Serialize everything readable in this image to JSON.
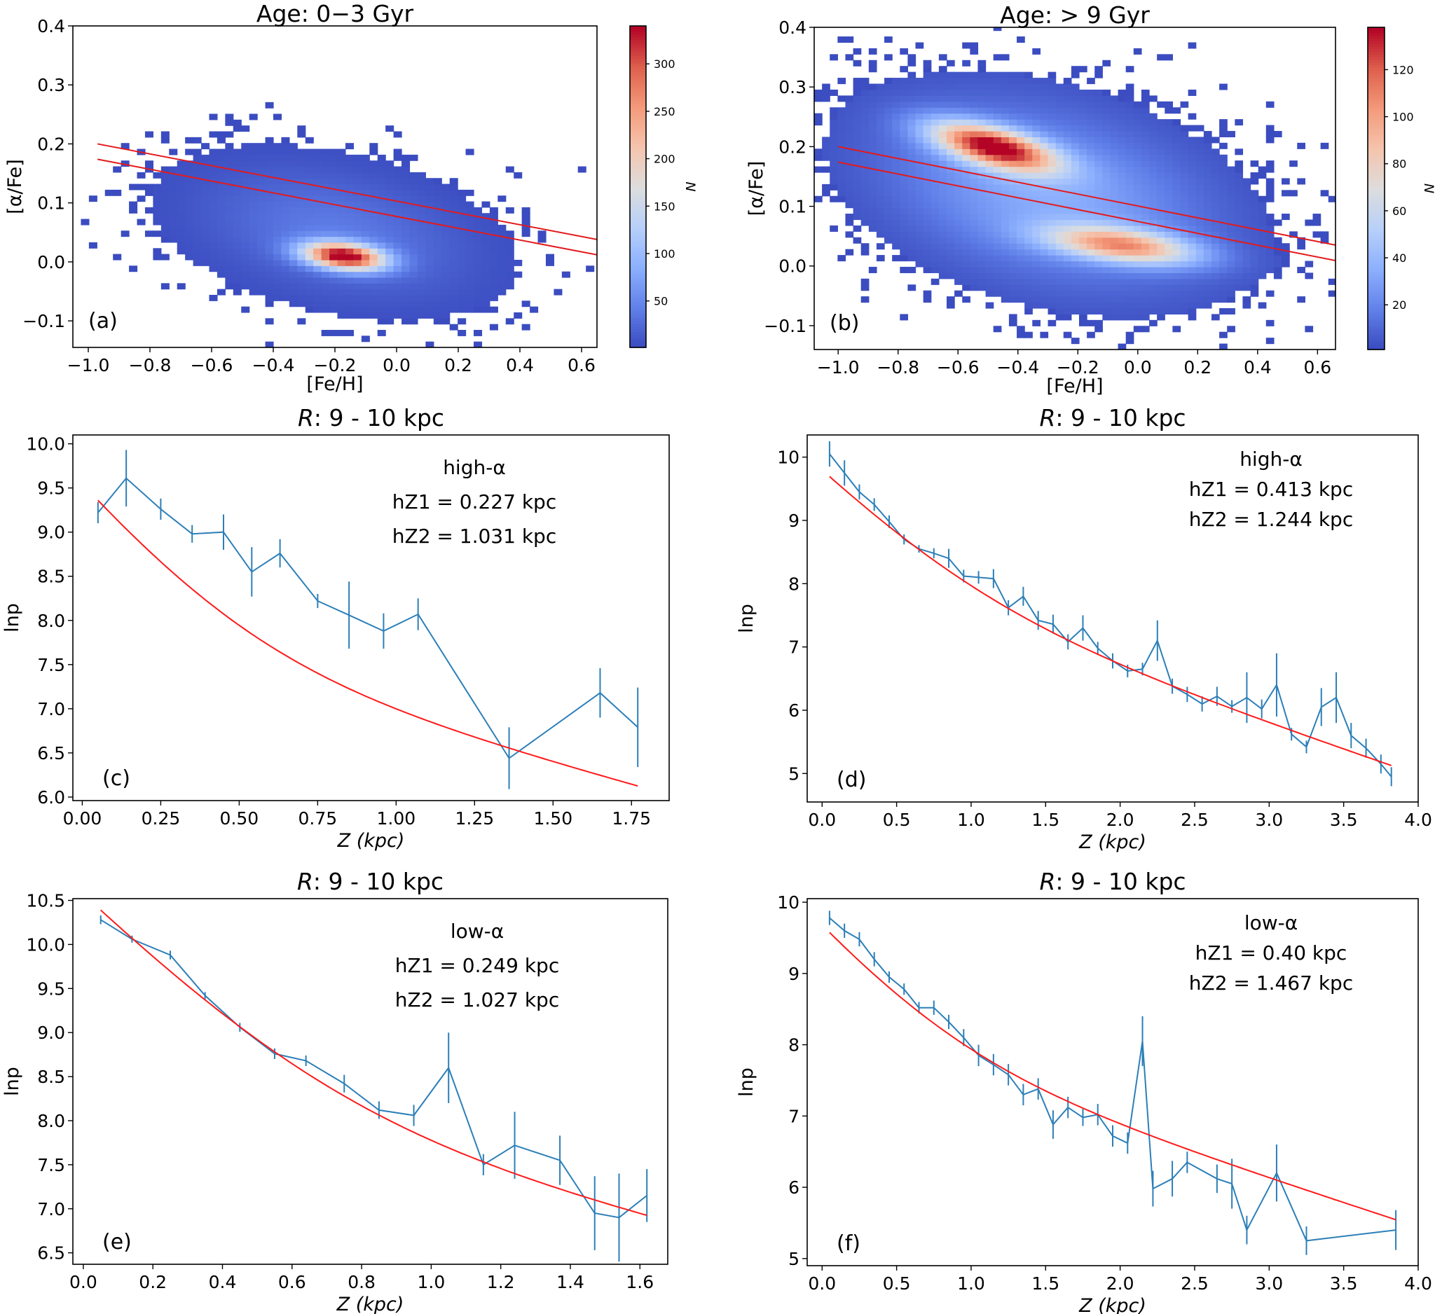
{
  "chart_data": [
    {
      "id": "a",
      "type": "heatmap",
      "title": "Age: 0−3 Gyr",
      "panel_label": "(a)",
      "xlabel": "[Fe/H]",
      "ylabel": "[α/Fe]",
      "xlim": [
        -1.05,
        0.65
      ],
      "ylim": [
        -0.145,
        0.4
      ],
      "xticks": [
        -1.0,
        -0.8,
        -0.6,
        -0.4,
        -0.2,
        0.0,
        0.2,
        0.4,
        0.6
      ],
      "xtick_labels": [
        "−1.0",
        "−0.8",
        "−0.6",
        "−0.4",
        "−0.2",
        "0.0",
        "0.2",
        "0.4",
        "0.6"
      ],
      "yticks": [
        -0.1,
        0.0,
        0.1,
        0.2,
        0.3,
        0.4
      ],
      "ytick_labels": [
        "−0.1",
        "0.0",
        "0.1",
        "0.2",
        "0.3",
        "0.4"
      ],
      "colorbar": {
        "label": "N",
        "min": 1,
        "max": 340,
        "ticks": [
          50,
          100,
          150,
          200,
          250,
          300
        ],
        "tick_labels": [
          "50",
          "100",
          "150",
          "200",
          "250",
          "300"
        ]
      },
      "clumps": [
        {
          "x": -0.17,
          "y": 0.01,
          "sx": 0.09,
          "sy": 0.016,
          "rho": -0.3,
          "amp": 340
        }
      ],
      "halo": {
        "x": -0.2,
        "y": 0.05,
        "sx": 0.28,
        "sy": 0.07,
        "amp": 38
      },
      "dividing_lines": [
        {
          "x": [
            -0.97,
            0.65
          ],
          "y": [
            0.2,
            0.038
          ]
        },
        {
          "x": [
            -0.97,
            0.65
          ],
          "y": [
            0.174,
            0.012
          ]
        }
      ]
    },
    {
      "id": "b",
      "type": "heatmap",
      "title": "Age: > 9 Gyr",
      "panel_label": "(b)",
      "xlabel": "[Fe/H]",
      "ylabel": "[α/Fe]",
      "xlim": [
        -1.08,
        0.66
      ],
      "ylim": [
        -0.14,
        0.4
      ],
      "xticks": [
        -1.0,
        -0.8,
        -0.6,
        -0.4,
        -0.2,
        0.0,
        0.2,
        0.4,
        0.6
      ],
      "xtick_labels": [
        "−1.0",
        "−0.8",
        "−0.6",
        "−0.4",
        "−0.2",
        "0.0",
        "0.2",
        "0.4",
        "0.6"
      ],
      "yticks": [
        -0.1,
        0.0,
        0.1,
        0.2,
        0.3,
        0.4
      ],
      "ytick_labels": [
        "−0.1",
        "0.0",
        "0.1",
        "0.2",
        "0.3",
        "0.4"
      ],
      "colorbar": {
        "label": "N",
        "min": 1,
        "max": 138,
        "ticks": [
          20,
          40,
          60,
          80,
          100,
          120
        ],
        "tick_labels": [
          "20",
          "40",
          "60",
          "80",
          "100",
          "120"
        ]
      },
      "clumps": [
        {
          "x": -0.48,
          "y": 0.2,
          "sx": 0.14,
          "sy": 0.028,
          "rho": -0.6,
          "amp": 128
        },
        {
          "x": -0.05,
          "y": 0.035,
          "sx": 0.17,
          "sy": 0.022,
          "rho": -0.45,
          "amp": 90
        }
      ],
      "halo": {
        "x": -0.3,
        "y": 0.12,
        "sx": 0.36,
        "sy": 0.1,
        "amp": 34
      },
      "dividing_lines": [
        {
          "x": [
            -1.0,
            0.66
          ],
          "y": [
            0.2,
            0.035
          ]
        },
        {
          "x": [
            -1.0,
            0.66
          ],
          "y": [
            0.174,
            0.009
          ]
        }
      ]
    },
    {
      "id": "c",
      "type": "line",
      "title": "R: 9 - 10 kpc",
      "title_italic": "R",
      "title_rest": ": 9 - 10 kpc",
      "panel_label": "(c)",
      "xlabel": "Z (kpc)",
      "ylabel": "lnp",
      "xlim": [
        -0.03,
        1.87
      ],
      "ylim": [
        5.96,
        10.1
      ],
      "xticks": [
        0.0,
        0.25,
        0.5,
        0.75,
        1.0,
        1.25,
        1.5,
        1.75
      ],
      "xtick_labels": [
        "0.00",
        "0.25",
        "0.50",
        "0.75",
        "1.00",
        "1.25",
        "1.50",
        "1.75"
      ],
      "yticks": [
        6.0,
        6.5,
        7.0,
        7.5,
        8.0,
        8.5,
        9.0,
        9.5,
        10.0
      ],
      "ytick_labels": [
        "6.0",
        "6.5",
        "7.0",
        "7.5",
        "8.0",
        "8.5",
        "9.0",
        "9.5",
        "10.0"
      ],
      "annotation": {
        "label": "high-α",
        "line1": "hZ1 = 0.227 kpc",
        "line2": "hZ2 = 1.031 kpc"
      },
      "series": [
        {
          "name": "data",
          "x": [
            0.05,
            0.14,
            0.25,
            0.35,
            0.45,
            0.54,
            0.63,
            0.75,
            0.85,
            0.96,
            1.07,
            1.36,
            1.65,
            1.77
          ],
          "y": [
            9.22,
            9.61,
            9.26,
            8.98,
            9.0,
            8.55,
            8.76,
            8.22,
            8.06,
            7.88,
            8.07,
            6.44,
            7.18,
            6.79
          ],
          "yerr": [
            0.12,
            0.32,
            0.12,
            0.1,
            0.2,
            0.28,
            0.16,
            0.08,
            0.38,
            0.2,
            0.18,
            0.35,
            0.28,
            0.45
          ]
        },
        {
          "name": "fit",
          "n0": 14000,
          "h1": 0.227,
          "h2": 1.031,
          "f": 0.18
        }
      ]
    },
    {
      "id": "d",
      "type": "line",
      "title": "R: 9 - 10 kpc",
      "title_italic": "R",
      "title_rest": ": 9 - 10 kpc",
      "panel_label": "(d)",
      "xlabel": "Z (kpc)",
      "ylabel": "lnp",
      "xlim": [
        -0.1,
        4.0
      ],
      "ylim": [
        4.55,
        10.35
      ],
      "xticks": [
        0.0,
        0.5,
        1.0,
        1.5,
        2.0,
        2.5,
        3.0,
        3.5,
        4.0
      ],
      "xtick_labels": [
        "0.0",
        "0.5",
        "1.0",
        "1.5",
        "2.0",
        "2.5",
        "3.0",
        "3.5",
        "4.0"
      ],
      "yticks": [
        5,
        6,
        7,
        8,
        9,
        10
      ],
      "ytick_labels": [
        "5",
        "6",
        "7",
        "8",
        "9",
        "10"
      ],
      "annotation": {
        "label": "high-α",
        "line1": "hZ1 = 0.413 kpc",
        "line2": "hZ2 = 1.244 kpc"
      },
      "series": [
        {
          "name": "data",
          "x": [
            0.05,
            0.15,
            0.25,
            0.35,
            0.45,
            0.55,
            0.65,
            0.75,
            0.85,
            0.95,
            1.05,
            1.15,
            1.25,
            1.35,
            1.45,
            1.55,
            1.65,
            1.75,
            1.85,
            1.95,
            2.05,
            2.15,
            2.25,
            2.35,
            2.45,
            2.55,
            2.65,
            2.75,
            2.85,
            2.95,
            3.05,
            3.15,
            3.25,
            3.35,
            3.45,
            3.55,
            3.65,
            3.75,
            3.82
          ],
          "y": [
            10.05,
            9.75,
            9.45,
            9.25,
            8.98,
            8.7,
            8.55,
            8.48,
            8.4,
            8.12,
            8.1,
            8.08,
            7.62,
            7.8,
            7.42,
            7.36,
            7.08,
            7.3,
            6.98,
            6.78,
            6.62,
            6.65,
            7.1,
            6.38,
            6.25,
            6.1,
            6.22,
            6.06,
            6.2,
            6.02,
            6.4,
            5.62,
            5.42,
            6.05,
            6.2,
            5.6,
            5.4,
            5.15,
            4.95
          ],
          "yerr": [
            0.2,
            0.2,
            0.12,
            0.1,
            0.1,
            0.08,
            0.06,
            0.08,
            0.15,
            0.1,
            0.1,
            0.15,
            0.12,
            0.15,
            0.15,
            0.15,
            0.12,
            0.2,
            0.1,
            0.12,
            0.1,
            0.1,
            0.32,
            0.12,
            0.12,
            0.12,
            0.15,
            0.1,
            0.4,
            0.15,
            0.5,
            0.1,
            0.1,
            0.3,
            0.4,
            0.2,
            0.15,
            0.15,
            0.15
          ]
        },
        {
          "name": "fit",
          "n0": 18000,
          "h1": 0.413,
          "h2": 1.244,
          "f": 0.2
        }
      ]
    },
    {
      "id": "e",
      "type": "line",
      "title": "R: 9 - 10 kpc",
      "title_italic": "R",
      "title_rest": ": 9 - 10 kpc",
      "panel_label": "(e)",
      "xlabel": "Z (kpc)",
      "ylabel": "lnp",
      "xlim": [
        -0.03,
        1.68
      ],
      "ylim": [
        6.37,
        10.52
      ],
      "xticks": [
        0.0,
        0.2,
        0.4,
        0.6,
        0.8,
        1.0,
        1.2,
        1.4,
        1.6
      ],
      "xtick_labels": [
        "0.0",
        "0.2",
        "0.4",
        "0.6",
        "0.8",
        "1.0",
        "1.2",
        "1.4",
        "1.6"
      ],
      "yticks": [
        6.5,
        7.0,
        7.5,
        8.0,
        8.5,
        9.0,
        9.5,
        10.0,
        10.5
      ],
      "ytick_labels": [
        "6.5",
        "7.0",
        "7.5",
        "8.0",
        "8.5",
        "9.0",
        "9.5",
        "10.0",
        "10.5"
      ],
      "annotation": {
        "label": "low-α",
        "line1": "hZ1 = 0.249 kpc",
        "line2": "hZ2 = 1.027 kpc"
      },
      "series": [
        {
          "name": "data",
          "x": [
            0.05,
            0.14,
            0.25,
            0.35,
            0.45,
            0.55,
            0.64,
            0.75,
            0.85,
            0.95,
            1.05,
            1.15,
            1.24,
            1.37,
            1.47,
            1.54,
            1.62
          ],
          "y": [
            10.28,
            10.06,
            9.88,
            9.42,
            9.06,
            8.76,
            8.68,
            8.42,
            8.12,
            8.06,
            8.6,
            7.5,
            7.72,
            7.55,
            6.95,
            6.9,
            7.15
          ],
          "yerr": [
            0.05,
            0.04,
            0.05,
            0.04,
            0.05,
            0.06,
            0.06,
            0.1,
            0.1,
            0.12,
            0.4,
            0.12,
            0.38,
            0.28,
            0.42,
            0.5,
            0.3
          ]
        },
        {
          "name": "fit",
          "n0": 39000,
          "h1": 0.249,
          "h2": 1.027,
          "f": 0.12
        }
      ]
    },
    {
      "id": "f",
      "type": "line",
      "title": "R: 9 - 10 kpc",
      "title_italic": "R",
      "title_rest": ": 9 - 10 kpc",
      "panel_label": "(f)",
      "xlabel": "Z (kpc)",
      "ylabel": "lnp",
      "xlim": [
        -0.1,
        4.0
      ],
      "ylim": [
        4.9,
        10.05
      ],
      "xticks": [
        0.0,
        0.5,
        1.0,
        1.5,
        2.0,
        2.5,
        3.0,
        3.5,
        4.0
      ],
      "xtick_labels": [
        "0.0",
        "0.5",
        "1.0",
        "1.5",
        "2.0",
        "2.5",
        "3.0",
        "3.5",
        "4.0"
      ],
      "yticks": [
        5,
        6,
        7,
        8,
        9,
        10
      ],
      "ytick_labels": [
        "5",
        "6",
        "7",
        "8",
        "9",
        "10"
      ],
      "annotation": {
        "label": "low-α",
        "line1": "hZ1 = 0.40 kpc",
        "line2": "hZ2 = 1.467 kpc"
      },
      "series": [
        {
          "name": "data",
          "x": [
            0.05,
            0.15,
            0.25,
            0.35,
            0.45,
            0.55,
            0.65,
            0.75,
            0.85,
            0.95,
            1.05,
            1.15,
            1.25,
            1.35,
            1.45,
            1.55,
            1.65,
            1.75,
            1.85,
            1.95,
            2.05,
            2.15,
            2.22,
            2.35,
            2.45,
            2.65,
            2.75,
            2.85,
            3.05,
            3.25,
            3.85
          ],
          "y": [
            9.78,
            9.6,
            9.48,
            9.2,
            8.95,
            8.78,
            8.52,
            8.52,
            8.32,
            8.1,
            7.85,
            7.72,
            7.58,
            7.3,
            7.38,
            6.88,
            7.12,
            6.98,
            7.02,
            6.72,
            6.62,
            8.05,
            5.98,
            6.12,
            6.35,
            6.12,
            6.05,
            5.4,
            6.2,
            5.25,
            5.4
          ],
          "yerr": [
            0.1,
            0.1,
            0.1,
            0.1,
            0.08,
            0.08,
            0.08,
            0.1,
            0.1,
            0.12,
            0.15,
            0.15,
            0.15,
            0.15,
            0.15,
            0.2,
            0.15,
            0.12,
            0.15,
            0.15,
            0.15,
            0.35,
            0.25,
            0.25,
            0.15,
            0.2,
            0.35,
            0.2,
            0.4,
            0.2,
            0.28
          ]
        },
        {
          "name": "fit",
          "n0": 16000,
          "h1": 0.4,
          "h2": 1.467,
          "f": 0.22
        }
      ]
    }
  ],
  "colors": {
    "data_line": "#2c7fb8",
    "fit_line": "#ff1a1a",
    "div_line": "#e31a1c"
  }
}
